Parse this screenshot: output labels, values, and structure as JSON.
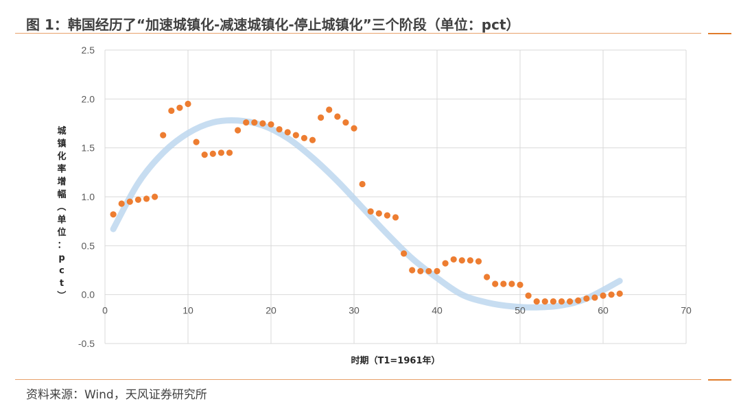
{
  "title": "图 1：韩国经历了“加速城镇化-减速城镇化-停止城镇化”三个阶段（单位：pct）",
  "source": "资料来源：Wind，天风证券研究所",
  "colors": {
    "points": "#ed7d31",
    "trend": "#bdd7ee",
    "grid": "#d9d9d9",
    "accent": "#e07b2a"
  },
  "chart_data": {
    "type": "scatter",
    "title": "",
    "xlabel": "时期（T1=1961年）",
    "ylabel": "城镇化率增幅（单位：pct）",
    "xlim": [
      0,
      70
    ],
    "ylim": [
      -0.5,
      2.5
    ],
    "x_ticks": [
      0,
      10,
      20,
      30,
      40,
      50,
      60,
      70
    ],
    "y_ticks": [
      -0.5,
      0.0,
      0.5,
      1.0,
      1.5,
      2.0,
      2.5
    ],
    "y_tick_labels": [
      "-0.5",
      "0.0",
      "0.5",
      "1.0",
      "1.5",
      "2.0",
      "2.5"
    ],
    "grid": true,
    "legend": "none",
    "series": [
      {
        "type": "scatter",
        "x": [
          1,
          2,
          3,
          4,
          5,
          6,
          7,
          8,
          9,
          10,
          11,
          12,
          13,
          14,
          15,
          16,
          17,
          18,
          19,
          20,
          21,
          22,
          23,
          24,
          25,
          26,
          27,
          28,
          29,
          30,
          31,
          32,
          33,
          34,
          35,
          36,
          37,
          38,
          39,
          40,
          41,
          42,
          43,
          44,
          45,
          46,
          47,
          48,
          49,
          50,
          51,
          52,
          53,
          54,
          55,
          56,
          57,
          58,
          59,
          60,
          61,
          62
        ],
        "y": [
          0.82,
          0.93,
          0.95,
          0.97,
          0.98,
          1.0,
          1.63,
          1.88,
          1.91,
          1.95,
          1.56,
          1.43,
          1.44,
          1.45,
          1.45,
          1.68,
          1.76,
          1.76,
          1.75,
          1.74,
          1.69,
          1.66,
          1.63,
          1.6,
          1.58,
          1.81,
          1.89,
          1.82,
          1.76,
          1.7,
          1.13,
          0.85,
          0.83,
          0.81,
          0.79,
          0.42,
          0.25,
          0.24,
          0.24,
          0.24,
          0.32,
          0.36,
          0.35,
          0.35,
          0.34,
          0.18,
          0.11,
          0.11,
          0.11,
          0.1,
          -0.01,
          -0.07,
          -0.07,
          -0.07,
          -0.07,
          -0.07,
          -0.06,
          -0.04,
          -0.03,
          -0.01,
          0.0,
          0.01
        ]
      },
      {
        "type": "trend",
        "x": [
          1,
          4,
          7,
          10,
          13,
          16,
          19,
          22,
          25,
          28,
          31,
          34,
          37,
          40,
          43,
          46,
          49,
          52,
          55,
          58,
          62
        ],
        "y": [
          0.67,
          1.14,
          1.45,
          1.65,
          1.76,
          1.78,
          1.73,
          1.6,
          1.4,
          1.16,
          0.89,
          0.62,
          0.37,
          0.17,
          0.0,
          -0.08,
          -0.12,
          -0.13,
          -0.11,
          -0.04,
          0.14
        ]
      }
    ]
  }
}
